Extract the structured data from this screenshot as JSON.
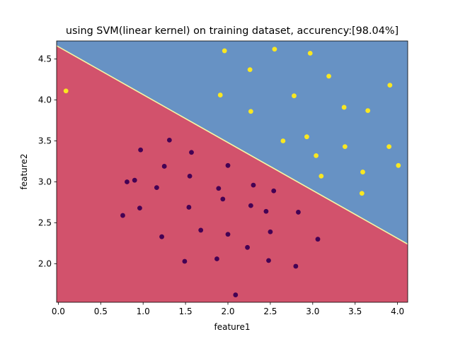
{
  "chart_data": {
    "type": "scatter",
    "title": "using SVM(linear kernel) on training dataset, accurency:[98.04%]",
    "xlabel": "feature1",
    "ylabel": "feature2",
    "xlim": [
      -0.02,
      4.12
    ],
    "ylim": [
      1.53,
      4.72
    ],
    "x_ticks": [
      0.0,
      0.5,
      1.0,
      1.5,
      2.0,
      2.5,
      3.0,
      3.5,
      4.0
    ],
    "x_tick_labels": [
      "0.0",
      "0.5",
      "1.0",
      "1.5",
      "2.0",
      "2.5",
      "3.0",
      "3.5",
      "4.0"
    ],
    "y_ticks": [
      2.0,
      2.5,
      3.0,
      3.5,
      4.0,
      4.5
    ],
    "y_tick_labels": [
      "2.0",
      "2.5",
      "3.0",
      "3.5",
      "4.0",
      "4.5"
    ],
    "grid": false,
    "decision_boundary": {
      "x": [
        0.0,
        4.12
      ],
      "y": [
        4.65,
        2.24
      ]
    },
    "region_colors": {
      "above": "#6792c4",
      "below": "#d2526c",
      "boundary": "#f7f7a5"
    },
    "series": [
      {
        "class": 1,
        "color": "#f9e721",
        "points": [
          [
            0.09,
            4.11
          ],
          [
            1.96,
            4.6
          ],
          [
            2.55,
            4.62
          ],
          [
            2.97,
            4.57
          ],
          [
            2.26,
            4.37
          ],
          [
            3.19,
            4.29
          ],
          [
            1.91,
            4.06
          ],
          [
            2.78,
            4.05
          ],
          [
            3.91,
            4.18
          ],
          [
            2.27,
            3.86
          ],
          [
            3.37,
            3.91
          ],
          [
            3.65,
            3.87
          ],
          [
            2.93,
            3.55
          ],
          [
            2.65,
            3.5
          ],
          [
            3.38,
            3.43
          ],
          [
            3.9,
            3.43
          ],
          [
            3.04,
            3.32
          ],
          [
            3.1,
            3.07
          ],
          [
            3.59,
            3.12
          ],
          [
            4.01,
            3.2
          ],
          [
            3.58,
            2.86
          ]
        ]
      },
      {
        "class": 0,
        "color": "#440154",
        "points": [
          [
            1.31,
            3.51
          ],
          [
            0.97,
            3.39
          ],
          [
            1.57,
            3.36
          ],
          [
            1.25,
            3.19
          ],
          [
            2.0,
            3.2
          ],
          [
            0.9,
            3.02
          ],
          [
            0.81,
            3.0
          ],
          [
            1.55,
            3.07
          ],
          [
            2.3,
            2.96
          ],
          [
            1.16,
            2.93
          ],
          [
            1.89,
            2.92
          ],
          [
            2.54,
            2.89
          ],
          [
            1.94,
            2.79
          ],
          [
            2.27,
            2.71
          ],
          [
            0.96,
            2.68
          ],
          [
            1.54,
            2.69
          ],
          [
            2.45,
            2.64
          ],
          [
            2.83,
            2.63
          ],
          [
            0.76,
            2.59
          ],
          [
            1.68,
            2.41
          ],
          [
            2.0,
            2.36
          ],
          [
            2.5,
            2.39
          ],
          [
            1.22,
            2.33
          ],
          [
            3.06,
            2.3
          ],
          [
            2.23,
            2.2
          ],
          [
            1.87,
            2.06
          ],
          [
            1.49,
            2.03
          ],
          [
            2.48,
            2.04
          ],
          [
            2.8,
            1.97
          ],
          [
            2.09,
            1.62
          ]
        ]
      }
    ]
  }
}
